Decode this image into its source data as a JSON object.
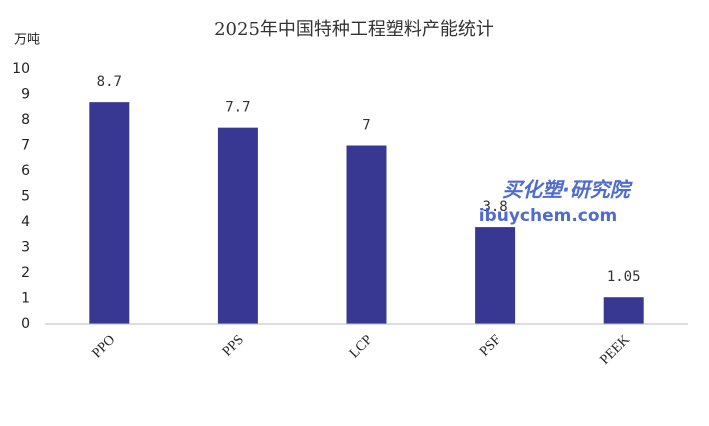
{
  "chart_data": {
    "type": "bar",
    "title": "2025年中国特种工程塑料产能统计",
    "y_label": "万吨",
    "categories": [
      "PPO",
      "PPS",
      "LCP",
      "PSF",
      "PEEK"
    ],
    "values": [
      8.7,
      7.7,
      7,
      3.8,
      1.05
    ],
    "color": "#383893",
    "ylim": [
      0,
      10
    ],
    "yticks": [
      0,
      1,
      2,
      3,
      4,
      5,
      6,
      7,
      8,
      9,
      10
    ],
    "grid": false,
    "annotations": [
      "买化塑·研究院",
      "ibuychem.com"
    ]
  }
}
